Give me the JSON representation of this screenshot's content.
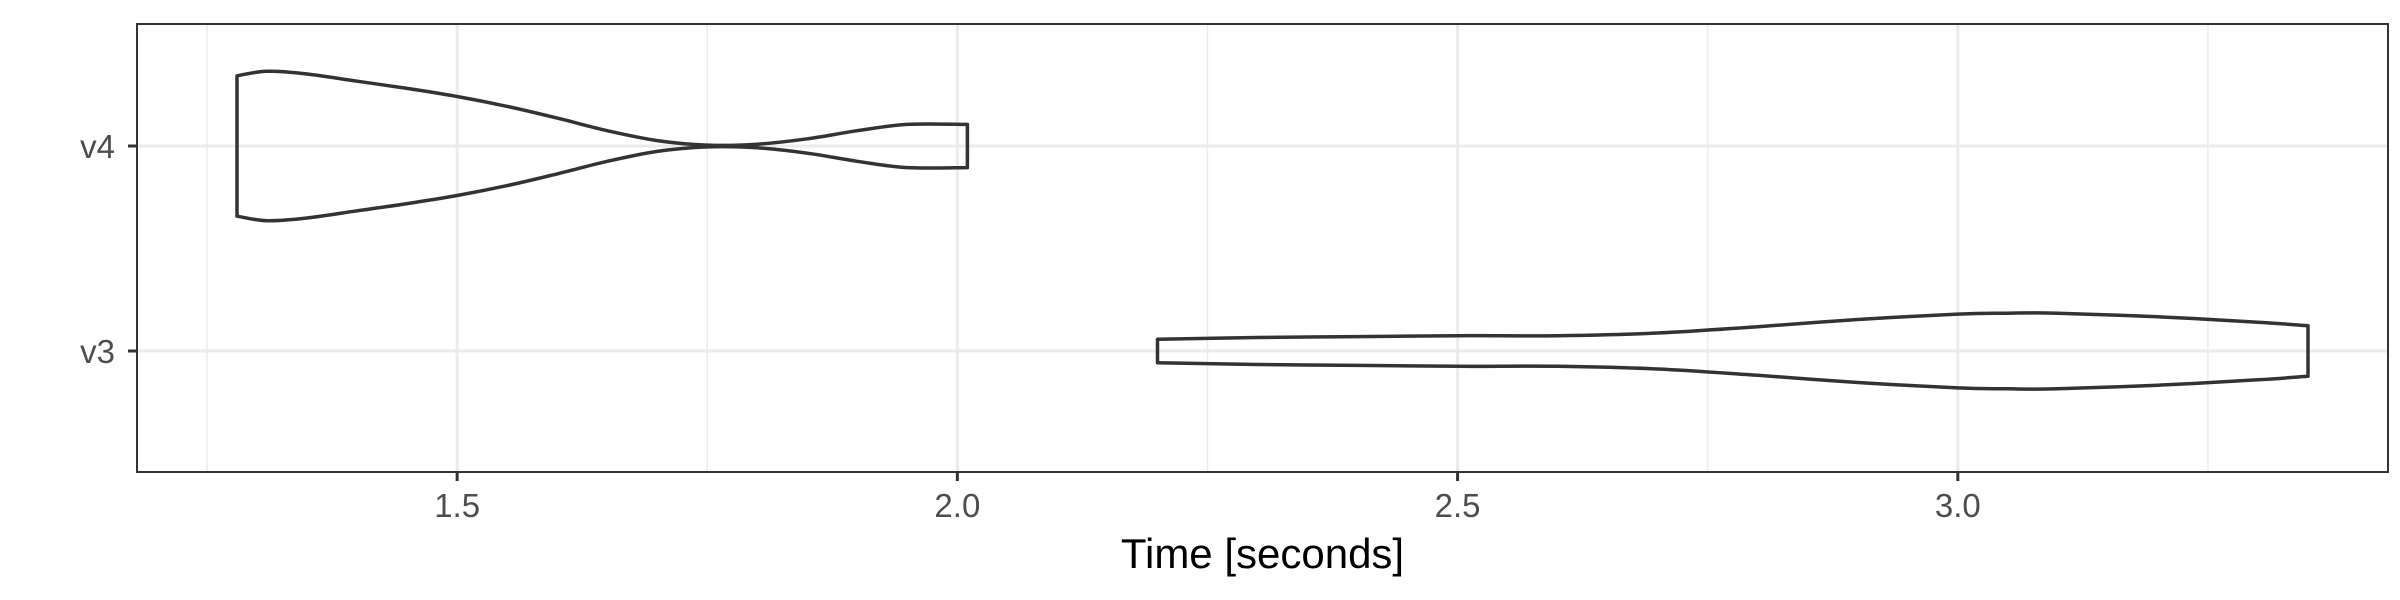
{
  "chart_data": {
    "type": "violin",
    "orientation": "horizontal",
    "title": "",
    "xlabel": "Time [seconds]",
    "ylabel": "",
    "xlim": [
      1.18,
      3.43
    ],
    "x_ticks": [
      1.5,
      2.0,
      2.5,
      3.0
    ],
    "x_tick_labels": [
      "1.5",
      "2.0",
      "2.5",
      "3.0"
    ],
    "x_minor_ticks": [
      1.25,
      1.75,
      2.25,
      2.75,
      3.25
    ],
    "categories": [
      "v3",
      "v4"
    ],
    "grid": true,
    "theme": "bw",
    "series": [
      {
        "category": "v4",
        "min": 1.28,
        "max": 2.01,
        "density_profile": [
          [
            1.28,
            0.78
          ],
          [
            1.31,
            0.83
          ],
          [
            1.35,
            0.8
          ],
          [
            1.4,
            0.72
          ],
          [
            1.45,
            0.64
          ],
          [
            1.5,
            0.55
          ],
          [
            1.55,
            0.44
          ],
          [
            1.6,
            0.31
          ],
          [
            1.65,
            0.17
          ],
          [
            1.7,
            0.06
          ],
          [
            1.75,
            0.01
          ],
          [
            1.8,
            0.02
          ],
          [
            1.85,
            0.08
          ],
          [
            1.9,
            0.17
          ],
          [
            1.95,
            0.24
          ],
          [
            2.01,
            0.24
          ]
        ]
      },
      {
        "category": "v3",
        "min": 2.2,
        "max": 3.35,
        "density_profile": [
          [
            2.2,
            0.13
          ],
          [
            2.3,
            0.15
          ],
          [
            2.4,
            0.16
          ],
          [
            2.5,
            0.17
          ],
          [
            2.6,
            0.17
          ],
          [
            2.7,
            0.2
          ],
          [
            2.8,
            0.27
          ],
          [
            2.9,
            0.35
          ],
          [
            3.0,
            0.41
          ],
          [
            3.05,
            0.42
          ],
          [
            3.1,
            0.42
          ],
          [
            3.2,
            0.38
          ],
          [
            3.3,
            0.32
          ],
          [
            3.35,
            0.28
          ]
        ]
      }
    ]
  }
}
